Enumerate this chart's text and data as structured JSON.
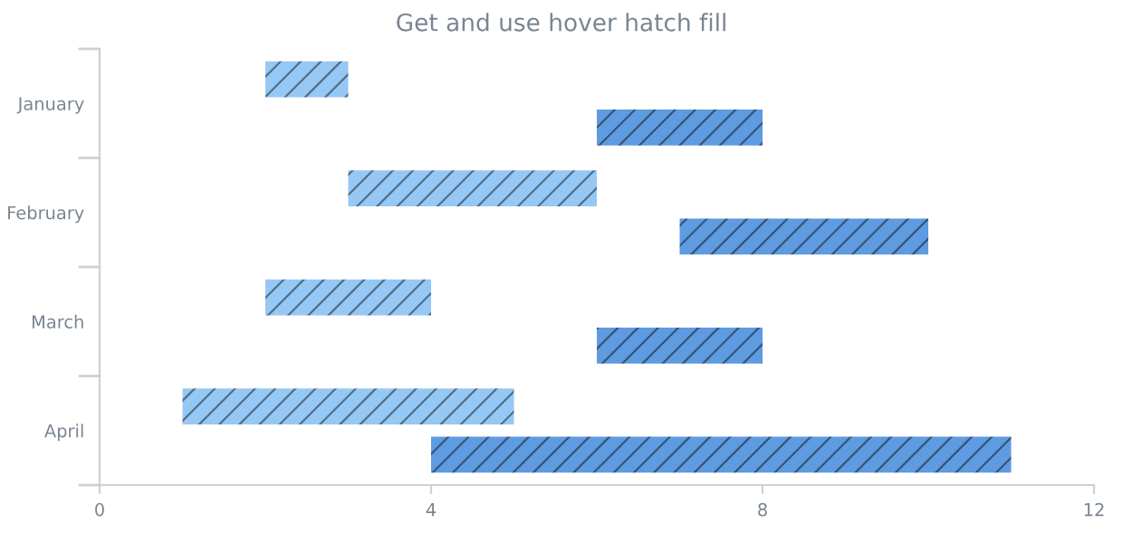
{
  "chart_data": {
    "type": "bar",
    "orientation": "horizontal",
    "title": "Get and use hover hatch fill",
    "categories": [
      "January",
      "February",
      "March",
      "April"
    ],
    "series": [
      {
        "color": "#96c8f5",
        "base": [
          2,
          3,
          2,
          1
        ],
        "values": [
          1,
          3,
          2,
          4
        ]
      },
      {
        "color": "#5f9be0",
        "base": [
          6,
          7,
          6,
          4
        ],
        "values": [
          2,
          3,
          2,
          7
        ]
      }
    ],
    "xlim": [
      0,
      12
    ],
    "xticks": [
      0,
      4,
      8,
      12
    ],
    "grid": false,
    "legend": false
  }
}
